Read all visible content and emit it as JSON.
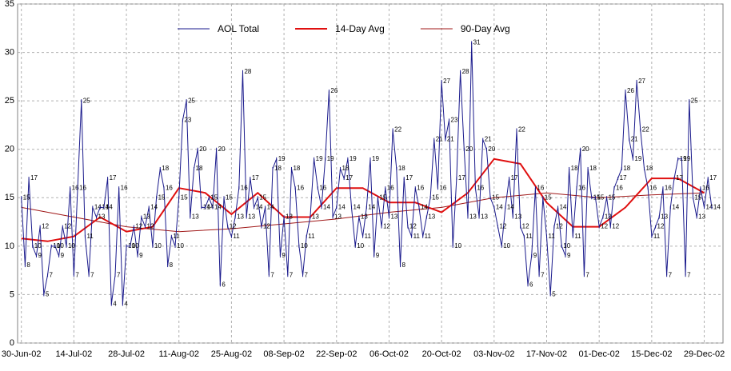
{
  "chart_data": {
    "type": "line",
    "x": [
      "2002-06-30",
      "2002-07-01",
      "2002-07-02",
      "2002-07-03",
      "2002-07-04",
      "2002-07-05",
      "2002-07-06",
      "2002-07-07",
      "2002-07-08",
      "2002-07-09",
      "2002-07-10",
      "2002-07-11",
      "2002-07-12",
      "2002-07-13",
      "2002-07-14",
      "2002-07-15",
      "2002-07-16",
      "2002-07-17",
      "2002-07-18",
      "2002-07-19",
      "2002-07-20",
      "2002-07-21",
      "2002-07-22",
      "2002-07-23",
      "2002-07-24",
      "2002-07-25",
      "2002-07-26",
      "2002-07-27",
      "2002-07-28",
      "2002-07-29",
      "2002-07-30",
      "2002-07-31",
      "2002-08-01",
      "2002-08-02",
      "2002-08-03",
      "2002-08-04",
      "2002-08-05",
      "2002-08-06",
      "2002-08-07",
      "2002-08-08",
      "2002-08-09",
      "2002-08-10",
      "2002-08-11",
      "2002-08-12",
      "2002-08-13",
      "2002-08-14",
      "2002-08-15",
      "2002-08-16",
      "2002-08-17",
      "2002-08-18",
      "2002-08-19",
      "2002-08-20",
      "2002-08-21",
      "2002-08-22",
      "2002-08-23",
      "2002-08-24",
      "2002-08-25",
      "2002-08-26",
      "2002-08-27",
      "2002-08-28",
      "2002-08-29",
      "2002-08-30",
      "2002-08-31",
      "2002-09-01",
      "2002-09-02",
      "2002-09-03",
      "2002-09-04",
      "2002-09-05",
      "2002-09-06",
      "2002-09-07",
      "2002-09-08",
      "2002-09-09",
      "2002-09-10",
      "2002-09-11",
      "2002-09-12",
      "2002-09-13",
      "2002-09-14",
      "2002-09-15",
      "2002-09-16",
      "2002-09-17",
      "2002-09-18",
      "2002-09-19",
      "2002-09-20",
      "2002-09-21",
      "2002-09-22",
      "2002-09-23",
      "2002-09-24",
      "2002-09-25",
      "2002-09-26",
      "2002-09-27",
      "2002-09-28",
      "2002-09-29",
      "2002-09-30",
      "2002-10-01",
      "2002-10-02",
      "2002-10-03",
      "2002-10-04",
      "2002-10-05",
      "2002-10-06",
      "2002-10-07",
      "2002-10-08",
      "2002-10-09",
      "2002-10-10",
      "2002-10-11",
      "2002-10-12",
      "2002-10-13",
      "2002-10-14",
      "2002-10-15",
      "2002-10-16",
      "2002-10-17",
      "2002-10-18",
      "2002-10-19",
      "2002-10-20",
      "2002-10-21",
      "2002-10-22",
      "2002-10-23",
      "2002-10-24",
      "2002-10-25",
      "2002-10-26",
      "2002-10-27",
      "2002-10-28",
      "2002-10-29",
      "2002-10-30",
      "2002-10-31",
      "2002-11-01",
      "2002-11-02",
      "2002-11-03",
      "2002-11-04",
      "2002-11-05",
      "2002-11-06",
      "2002-11-07",
      "2002-11-08",
      "2002-11-09",
      "2002-11-10",
      "2002-11-11",
      "2002-11-12",
      "2002-11-13",
      "2002-11-14",
      "2002-11-15",
      "2002-11-16",
      "2002-11-17",
      "2002-11-18",
      "2002-11-19",
      "2002-11-20",
      "2002-11-21",
      "2002-11-22",
      "2002-11-23",
      "2002-11-24",
      "2002-11-25",
      "2002-11-26",
      "2002-11-27",
      "2002-11-28",
      "2002-11-29",
      "2002-11-30",
      "2002-12-01",
      "2002-12-02",
      "2002-12-03",
      "2002-12-04",
      "2002-12-05",
      "2002-12-06",
      "2002-12-07",
      "2002-12-08",
      "2002-12-09",
      "2002-12-10",
      "2002-12-11",
      "2002-12-12",
      "2002-12-13",
      "2002-12-14",
      "2002-12-15",
      "2002-12-16",
      "2002-12-17",
      "2002-12-18",
      "2002-12-19",
      "2002-12-20",
      "2002-12-21",
      "2002-12-22",
      "2002-12-23",
      "2002-12-24",
      "2002-12-25",
      "2002-12-26",
      "2002-12-27",
      "2002-12-28",
      "2002-12-29",
      "2002-12-30",
      "2002-12-31"
    ],
    "series": [
      {
        "name": "AOL Total",
        "color": "#1a1a8c",
        "labels": true,
        "values": [
          15,
          8,
          17,
          10,
          9,
          12,
          5,
          7,
          10,
          10,
          9,
          12,
          10,
          16,
          7,
          16,
          25,
          11,
          7,
          14,
          13,
          14,
          14,
          17,
          4,
          7,
          16,
          4,
          10,
          10,
          12,
          9,
          13,
          12,
          14,
          10,
          15,
          18,
          16,
          8,
          11,
          10,
          15,
          23,
          25,
          13,
          18,
          20,
          14,
          14,
          15,
          14,
          20,
          6,
          15,
          12,
          11,
          13,
          16,
          28,
          13,
          17,
          14,
          15,
          12,
          14,
          7,
          18,
          19,
          9,
          13,
          7,
          18,
          16,
          10,
          7,
          11,
          13,
          19,
          16,
          14,
          19,
          26,
          13,
          14,
          18,
          17,
          19,
          14,
          10,
          13,
          11,
          14,
          19,
          9,
          15,
          12,
          16,
          13,
          22,
          18,
          8,
          17,
          12,
          11,
          16,
          14,
          11,
          13,
          15,
          21,
          16,
          27,
          21,
          23,
          10,
          17,
          28,
          20,
          13,
          31,
          16,
          13,
          21,
          20,
          15,
          14,
          12,
          10,
          14,
          17,
          13,
          22,
          12,
          11,
          6,
          9,
          16,
          7,
          15,
          11,
          5,
          12,
          14,
          10,
          9,
          18,
          11,
          16,
          20,
          7,
          18,
          15,
          15,
          12,
          13,
          15,
          12,
          16,
          17,
          18,
          26,
          21,
          19,
          27,
          22,
          18,
          16,
          11,
          12,
          13,
          16,
          7,
          14,
          17,
          19,
          19,
          7,
          25,
          15,
          13,
          16,
          14,
          17,
          14
        ]
      },
      {
        "name": "14-Day Avg",
        "color": "#e01010",
        "width": 2,
        "x": [
          "2002-06-30",
          "2002-07-07",
          "2002-07-14",
          "2002-07-21",
          "2002-07-28",
          "2002-08-04",
          "2002-08-11",
          "2002-08-18",
          "2002-08-25",
          "2002-09-01",
          "2002-09-08",
          "2002-09-15",
          "2002-09-22",
          "2002-09-29",
          "2002-10-06",
          "2002-10-13",
          "2002-10-20",
          "2002-10-27",
          "2002-11-03",
          "2002-11-10",
          "2002-11-17",
          "2002-11-24",
          "2002-12-01",
          "2002-12-08",
          "2002-12-15",
          "2002-12-22",
          "2002-12-29"
        ],
        "values": [
          10.8,
          10.5,
          11,
          13,
          11.5,
          12,
          16,
          15.5,
          13.3,
          15.5,
          13,
          13,
          16,
          16,
          14.5,
          14.5,
          13.5,
          15.5,
          19,
          18.5,
          14.5,
          12,
          12,
          14,
          17,
          17,
          15.5
        ]
      },
      {
        "name": "90-Day Avg",
        "color": "#a01818",
        "width": 1,
        "x": [
          "2002-06-30",
          "2002-07-14",
          "2002-07-28",
          "2002-08-11",
          "2002-08-25",
          "2002-09-08",
          "2002-09-22",
          "2002-10-06",
          "2002-10-20",
          "2002-11-03",
          "2002-11-17",
          "2002-12-01",
          "2002-12-15",
          "2002-12-29"
        ],
        "values": [
          14,
          13,
          12,
          11.5,
          11.8,
          12.3,
          12.8,
          13.5,
          14,
          15,
          15.5,
          15,
          15.3,
          15.5
        ]
      }
    ],
    "xlim": [
      "2002-06-29",
      "2003-01-03"
    ],
    "xticks": [
      {
        "value": "2002-06-30",
        "label": "30-Jun-02"
      },
      {
        "value": "2002-07-14",
        "label": "14-Jul-02"
      },
      {
        "value": "2002-07-28",
        "label": "28-Jul-02"
      },
      {
        "value": "2002-08-11",
        "label": "11-Aug-02"
      },
      {
        "value": "2002-08-25",
        "label": "25-Aug-02"
      },
      {
        "value": "2002-09-08",
        "label": "08-Sep-02"
      },
      {
        "value": "2002-09-22",
        "label": "22-Sep-02"
      },
      {
        "value": "2002-10-06",
        "label": "06-Oct-02"
      },
      {
        "value": "2002-10-20",
        "label": "20-Oct-02"
      },
      {
        "value": "2002-11-03",
        "label": "03-Nov-02"
      },
      {
        "value": "2002-11-17",
        "label": "17-Nov-02"
      },
      {
        "value": "2002-12-01",
        "label": "01-Dec-02"
      },
      {
        "value": "2002-12-15",
        "label": "15-Dec-02"
      },
      {
        "value": "2002-12-29",
        "label": "29-Dec-02"
      }
    ],
    "ylim": [
      0,
      35
    ],
    "yticks": [
      0,
      5,
      10,
      15,
      20,
      25,
      30,
      35
    ],
    "grid": true,
    "legend": "top"
  }
}
